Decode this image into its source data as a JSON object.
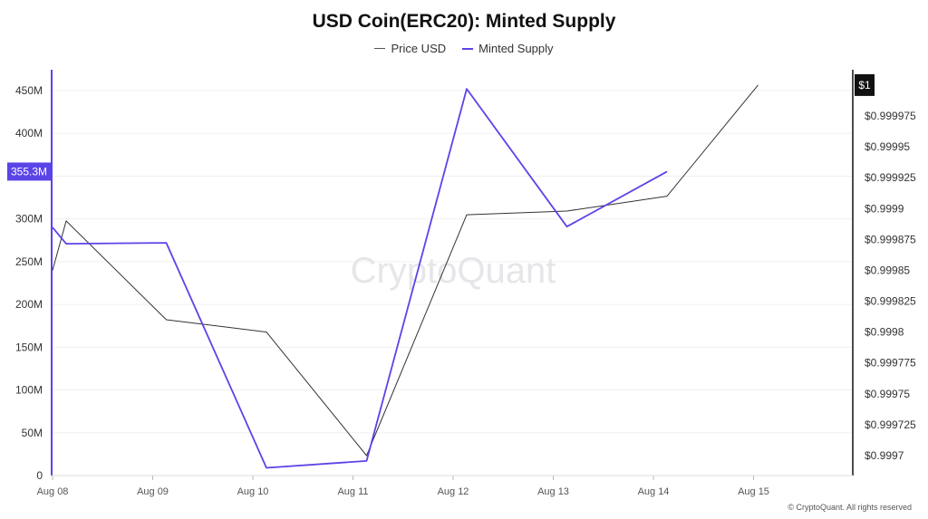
{
  "chart_data": {
    "type": "line",
    "title": "USD Coin(ERC20): Minted Supply",
    "categories": [
      "Aug 08",
      "Aug 09",
      "Aug 10",
      "Aug 11",
      "Aug 12",
      "Aug 13",
      "Aug 14",
      "Aug 15"
    ],
    "left_axis": {
      "ticks": [
        "0",
        "50M",
        "100M",
        "150M",
        "200M",
        "250M",
        "300M",
        "350M",
        "400M",
        "450M"
      ],
      "range": [
        0,
        475000000
      ],
      "highlight_label": "355.3M",
      "highlight_value": 355300000
    },
    "right_axis": {
      "ticks": [
        "$0.9997",
        "$0.999725",
        "$0.99975",
        "$0.999775",
        "$0.9998",
        "$0.999825",
        "$0.99985",
        "$0.999875",
        "$0.9999",
        "$0.999925",
        "$0.99995",
        "$0.999975"
      ],
      "range": [
        0.99969,
        1.00002
      ],
      "highlight_label": "$1",
      "highlight_value": 1.0
    },
    "series": [
      {
        "name": "Price USD",
        "axis": "right",
        "color": "#333333",
        "points": [
          {
            "x": "Aug 08",
            "y": 0.99985
          },
          {
            "x": "Aug 08",
            "y": 0.99989
          },
          {
            "x": "Aug 09",
            "y": 0.99981
          },
          {
            "x": "Aug 10",
            "y": 0.9998
          },
          {
            "x": "Aug 11",
            "y": 0.9997
          },
          {
            "x": "Aug 12",
            "y": 0.999895
          },
          {
            "x": "Aug 13",
            "y": 0.999898
          },
          {
            "x": "Aug 14",
            "y": 0.99991
          },
          {
            "x": "Aug 15",
            "y": 1.0
          }
        ]
      },
      {
        "name": "Minted Supply",
        "axis": "left",
        "color": "#5a44e8",
        "points": [
          {
            "x": "Aug 08",
            "y": 290000000
          },
          {
            "x": "Aug 08",
            "y": 271000000
          },
          {
            "x": "Aug 09",
            "y": 272000000
          },
          {
            "x": "Aug 10",
            "y": 9000000
          },
          {
            "x": "Aug 11",
            "y": 17000000
          },
          {
            "x": "Aug 12",
            "y": 452000000
          },
          {
            "x": "Aug 13",
            "y": 291000000
          },
          {
            "x": "Aug 14",
            "y": 355300000
          }
        ]
      }
    ],
    "watermark": "CryptoQuant",
    "credit": "© CryptoQuant. All rights reserved"
  }
}
